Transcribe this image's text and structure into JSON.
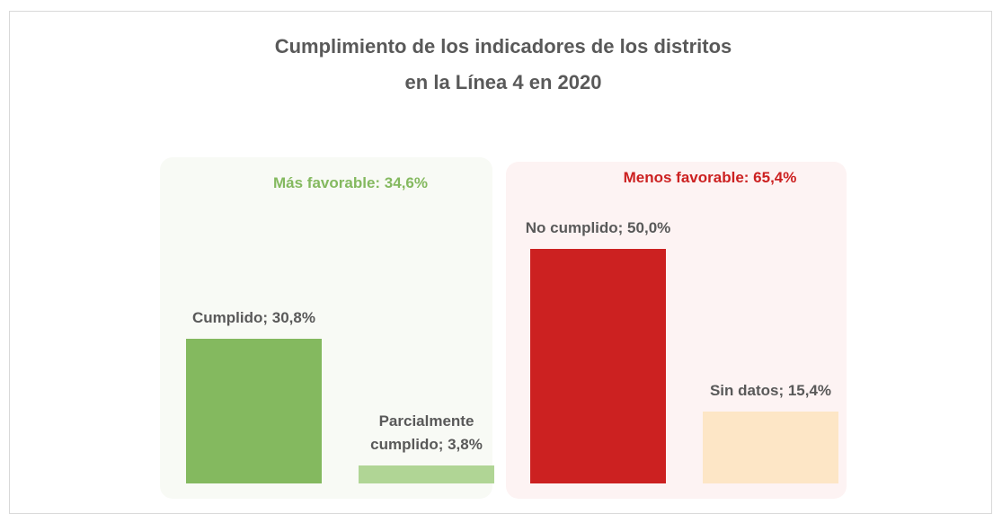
{
  "chart_data": {
    "type": "bar",
    "title": "Cumplimiento de los indicadores de los distritos en la Línea 4 en 2020",
    "categories": [
      "Cumplido",
      "Parcialmente cumplido",
      "No cumplido",
      "Sin datos"
    ],
    "values": [
      30.8,
      3.8,
      50.0,
      15.4
    ],
    "value_labels": [
      "Cumplido; 30,8%",
      "Parcialmente cumplido; 3,8%",
      "No cumplido; 50,0%",
      "Sin datos; 15,4%"
    ],
    "colors": [
      "#84b95f",
      "#b0d595",
      "#cc2121",
      "#fde6c6"
    ],
    "annotations": [
      {
        "text": "Más favorable: 34,6%",
        "color": "#84b95f"
      },
      {
        "text": "Menos favorable: 65,4%",
        "color": "#cc2121"
      }
    ]
  }
}
